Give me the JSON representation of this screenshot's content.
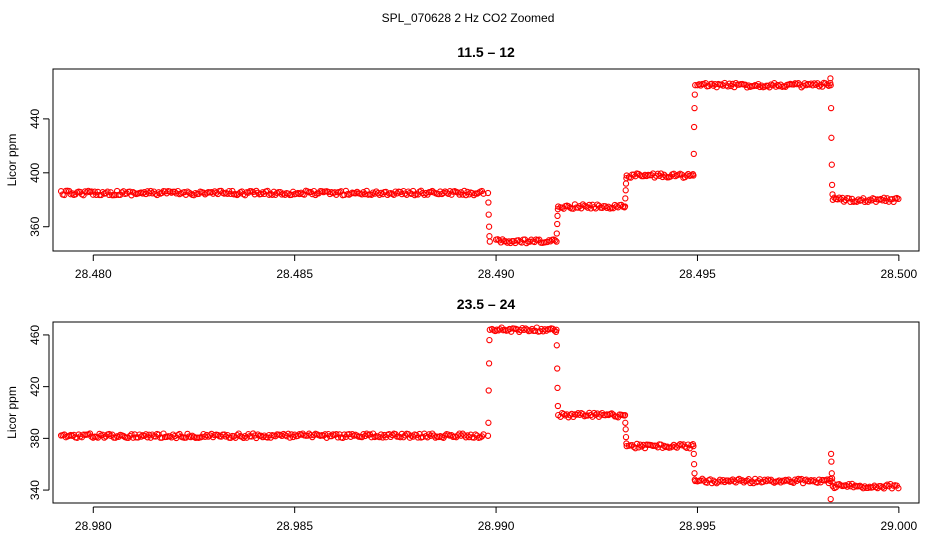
{
  "figure": {
    "title": "SPL_070628  2 Hz CO2 Zoomed"
  },
  "colors": {
    "points": "#ff0000",
    "axes": "#000000",
    "background": "#ffffff"
  },
  "chart_data": [
    {
      "type": "scatter",
      "title": "11.5 – 12",
      "xlabel": "",
      "ylabel": "Licor ppm",
      "xlim": [
        28.479,
        28.5005
      ],
      "ylim": [
        342,
        477
      ],
      "xticks": [
        28.48,
        28.485,
        28.49,
        28.495,
        28.5
      ],
      "xtick_labels": [
        "28.480",
        "28.485",
        "28.490",
        "28.495",
        "28.500"
      ],
      "yticks": [
        360,
        400,
        440
      ],
      "ytick_labels": [
        "360",
        "400",
        "440"
      ],
      "grid": false,
      "marker": "open circle",
      "plateaus": [
        {
          "x_start": 28.4792,
          "x_end": 28.4897,
          "y": 385
        },
        {
          "x_start": 28.49,
          "x_end": 28.4915,
          "y": 349
        },
        {
          "x_start": 28.4916,
          "x_end": 28.4932,
          "y": 375
        },
        {
          "x_start": 28.4933,
          "x_end": 28.4949,
          "y": 398
        },
        {
          "x_start": 28.495,
          "x_end": 28.4983,
          "y": 465
        },
        {
          "x_start": 28.4984,
          "x_end": 28.5,
          "y": 380
        }
      ],
      "transitions": [
        {
          "x": 28.4898,
          "y": [
            385,
            378,
            369,
            360,
            353,
            349
          ]
        },
        {
          "x": 28.4915,
          "y": [
            349,
            355,
            362,
            368,
            373,
            375
          ]
        },
        {
          "x": 28.4932,
          "y": [
            375,
            381,
            387,
            392,
            396,
            398
          ]
        },
        {
          "x": 28.4949,
          "y": [
            398,
            414,
            434,
            448,
            458,
            465
          ]
        },
        {
          "x": 28.4983,
          "y": [
            470,
            465,
            448,
            426,
            406,
            391,
            384,
            380
          ]
        }
      ]
    },
    {
      "type": "scatter",
      "title": "23.5 – 24",
      "xlabel": "",
      "ylabel": "Licor ppm",
      "xlim": [
        28.979,
        29.0005
      ],
      "ylim": [
        330,
        470
      ],
      "xticks": [
        28.98,
        28.985,
        28.99,
        28.995,
        29.0
      ],
      "xtick_labels": [
        "28.980",
        "28.985",
        "28.990",
        "28.995",
        "29.000"
      ],
      "yticks": [
        340,
        380,
        420,
        460
      ],
      "ytick_labels": [
        "340",
        "380",
        "420",
        "460"
      ],
      "grid": false,
      "marker": "open circle",
      "plateaus": [
        {
          "x_start": 28.9792,
          "x_end": 28.9897,
          "y": 382
        },
        {
          "x_start": 28.9899,
          "x_end": 28.9915,
          "y": 464
        },
        {
          "x_start": 28.9916,
          "x_end": 28.9932,
          "y": 398
        },
        {
          "x_start": 28.9933,
          "x_end": 28.9949,
          "y": 374
        },
        {
          "x_start": 28.995,
          "x_end": 28.9983,
          "y": 347
        },
        {
          "x_start": 28.9984,
          "x_end": 29.0,
          "y": 343
        }
      ],
      "transitions": [
        {
          "x": 28.9898,
          "y": [
            382,
            392,
            417,
            438,
            456,
            464
          ]
        },
        {
          "x": 28.9915,
          "y": [
            464,
            452,
            434,
            419,
            405,
            398
          ]
        },
        {
          "x": 28.9932,
          "y": [
            398,
            392,
            387,
            381,
            376,
            374
          ]
        },
        {
          "x": 28.9949,
          "y": [
            374,
            368,
            360,
            353,
            348,
            347
          ]
        },
        {
          "x": 28.9983,
          "y": [
            347,
            333,
            368,
            362,
            353,
            349,
            346,
            343
          ]
        }
      ]
    }
  ]
}
